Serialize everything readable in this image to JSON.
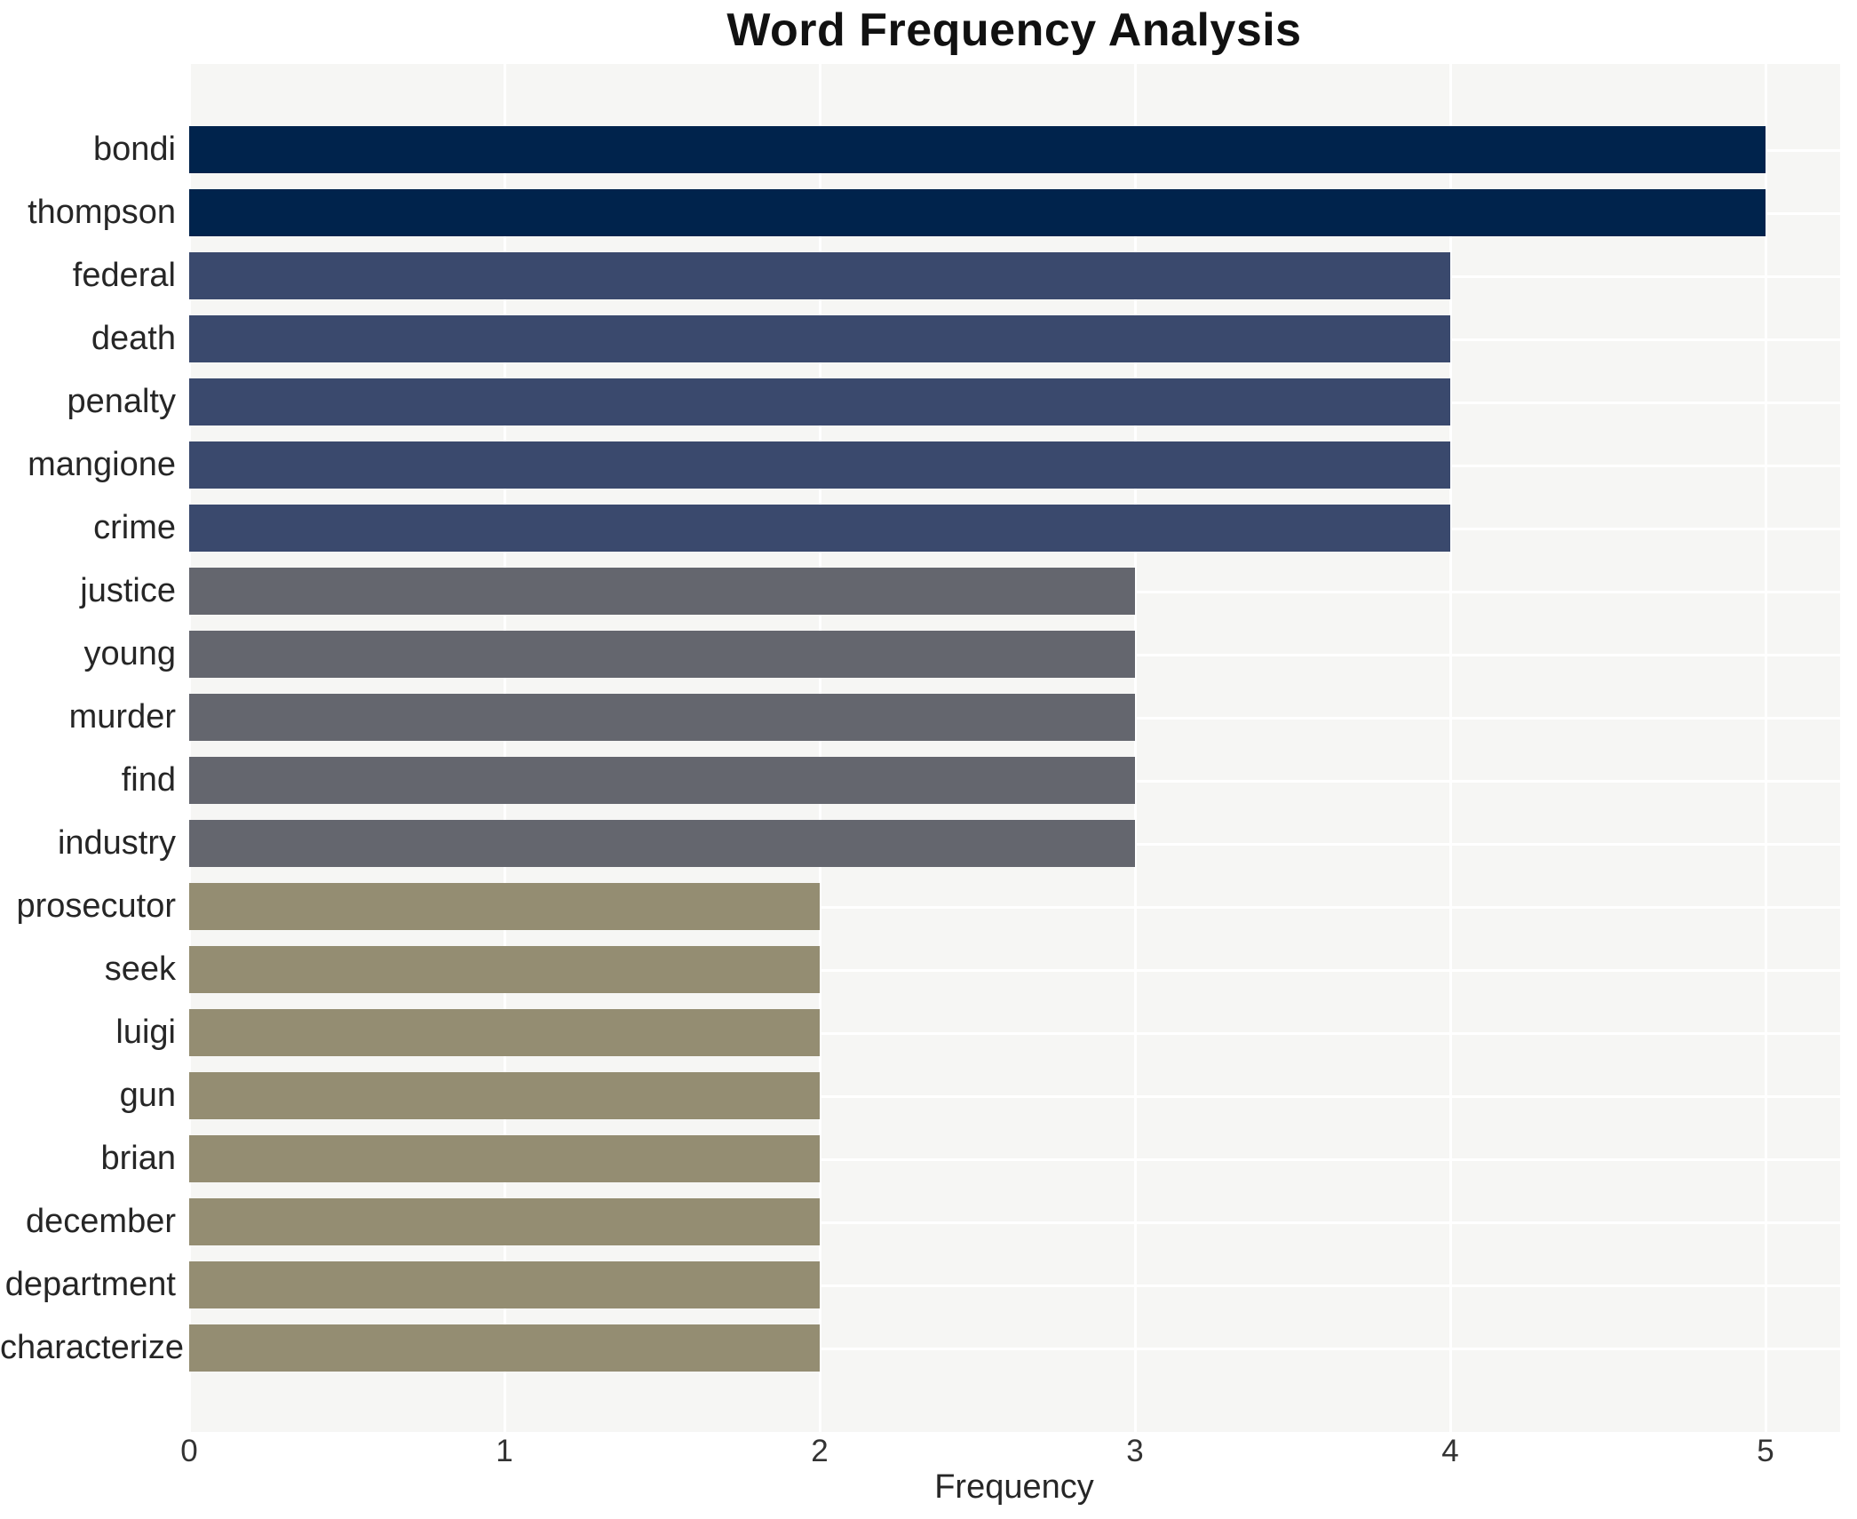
{
  "chart": {
    "title": "Word Frequency Analysis",
    "xlabel": "Frequency"
  },
  "chart_data": {
    "type": "bar",
    "orientation": "horizontal",
    "title": "Word Frequency Analysis",
    "xlabel": "Frequency",
    "ylabel": "",
    "categories": [
      "bondi",
      "thompson",
      "federal",
      "death",
      "penalty",
      "mangione",
      "crime",
      "justice",
      "young",
      "murder",
      "find",
      "industry",
      "prosecutor",
      "seek",
      "luigi",
      "gun",
      "brian",
      "december",
      "department",
      "characterize"
    ],
    "values": [
      5,
      5,
      4,
      4,
      4,
      4,
      4,
      3,
      3,
      3,
      3,
      3,
      2,
      2,
      2,
      2,
      2,
      2,
      2,
      2
    ],
    "x_ticks": [
      "0",
      "1",
      "2",
      "3",
      "4",
      "5"
    ],
    "xlim": [
      0,
      5.24
    ],
    "grid": true,
    "legend_position": "none",
    "value_colors": {
      "5": "#00234c",
      "4": "#3a496d",
      "3": "#64666e",
      "2": "#948d72"
    },
    "plot_bg": "#f6f6f4",
    "grid_color": "#ffffff",
    "text_color": "#262626"
  }
}
